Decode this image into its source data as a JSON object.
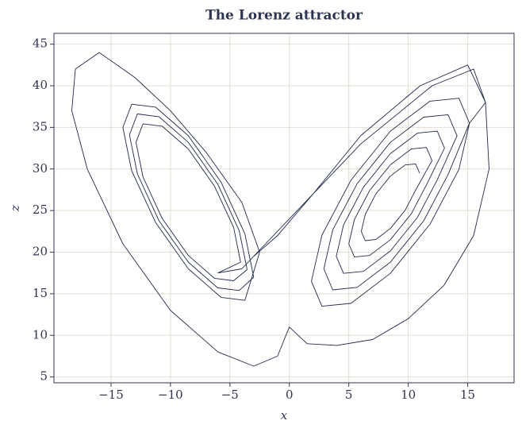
{
  "chart_data": {
    "type": "line",
    "title": "The Lorenz attractor",
    "xlabel": "x",
    "ylabel": "z",
    "color": "#1f2a4a",
    "grid": true,
    "xlim": [
      -19.8,
      18.9
    ],
    "ylim": [
      4.3,
      46.3
    ],
    "xticks": [
      {
        "value": -15,
        "label": "−15"
      },
      {
        "value": -10,
        "label": "−10"
      },
      {
        "value": -5,
        "label": "−5"
      },
      0,
      5,
      10,
      15
    ],
    "yticks": [
      5,
      10,
      15,
      20,
      25,
      30,
      35,
      40,
      45
    ],
    "x": [
      10.95,
      10.62,
      9.73,
      8.5,
      7.27,
      6.38,
      6.05,
      6.38,
      7.27,
      8.5,
      9.73,
      10.62,
      12,
      11.53,
      10.25,
      8.5,
      6.75,
      5.47,
      5,
      5.47,
      6.75,
      8.5,
      10.25,
      11.53,
      13.05,
      12.44,
      10.78,
      8.5,
      6.23,
      4.56,
      3.95,
      4.56,
      6.23,
      8.5,
      10.78,
      12.44,
      14.1,
      13.35,
      11.3,
      8.5,
      5.7,
      3.65,
      2.9,
      3.65,
      5.7,
      8.5,
      11.3,
      13.35,
      15.15,
      14.26,
      11.83,
      8.5,
      5.18,
      2.74,
      1.85,
      2.74,
      5.18,
      8.5,
      11.83,
      14.26,
      15.15,
      16.5,
      15.5,
      12,
      6,
      0,
      -4,
      -6,
      -4.1,
      -4.69,
      -6.3,
      -8.5,
      -10.7,
      -12.31,
      -12.9,
      -12.31,
      -10.7,
      -8.5,
      -6.3,
      -4.69,
      -3.55,
      -4.22,
      -6.03,
      -8.5,
      -10.98,
      -12.78,
      -13.45,
      -12.78,
      -10.98,
      -8.5,
      -6.03,
      -4.22,
      -3,
      -3.74,
      -5.75,
      -8.5,
      -11.25,
      -13.26,
      -14,
      -13.26,
      -11.25,
      -8.5,
      -5.75,
      -3.74,
      -2.5,
      -4,
      -7,
      -10,
      -13,
      -16,
      -18,
      -18.3,
      -17,
      -14,
      -10,
      -6,
      -3,
      -1,
      0,
      1.5,
      4,
      7,
      10,
      13,
      15.5,
      16.8,
      16.5,
      15,
      11,
      6,
      2,
      -1,
      -3
    ],
    "values": [
      29.5,
      30.61,
      30.48,
      29.15,
      26.98,
      24.54,
      22.5,
      21.39,
      21.52,
      22.85,
      25.02,
      27.46,
      31,
      32.58,
      32.4,
      30.5,
      27.4,
      23.92,
      21,
      19.42,
      19.6,
      21.5,
      24.6,
      28.08,
      32.5,
      34.55,
      34.31,
      31.85,
      27.81,
      23.3,
      19.5,
      17.45,
      17.69,
      20.15,
      24.19,
      28.7,
      34,
      36.53,
      36.23,
      33.2,
      28.23,
      22.67,
      18,
      15.47,
      15.77,
      18.8,
      23.77,
      29.33,
      35.5,
      38.5,
      38.15,
      34.55,
      28.65,
      22.05,
      16.5,
      13.5,
      13.85,
      17.45,
      23.35,
      29.95,
      35.5,
      38,
      42,
      40,
      33,
      24,
      18,
      17.5,
      18.8,
      22.97,
      27.94,
      32.4,
      35.14,
      35.43,
      33.2,
      29.03,
      24.06,
      19.6,
      16.86,
      16.57,
      17.9,
      22.59,
      28.19,
      33.2,
      36.29,
      36.61,
      34.1,
      29.41,
      23.81,
      18.8,
      15.71,
      15.39,
      17,
      22.21,
      28.43,
      34,
      37.43,
      37.79,
      35,
      29.79,
      23.57,
      18,
      14.57,
      14.21,
      20,
      26,
      32,
      37,
      41,
      44,
      42,
      37,
      30,
      21,
      13,
      8,
      6.3,
      7.5,
      11,
      9,
      8.8,
      9.5,
      12,
      16,
      22,
      30,
      38,
      42.5,
      40,
      34,
      27,
      22,
      19.5
    ]
  }
}
